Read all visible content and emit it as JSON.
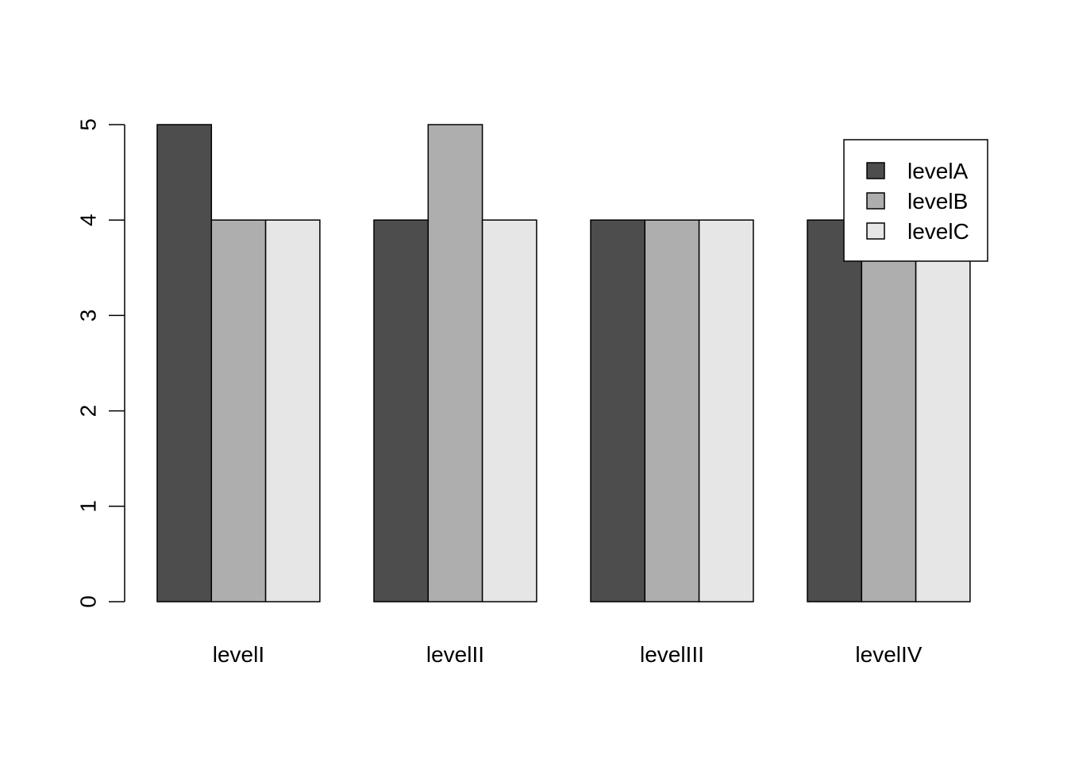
{
  "chart_data": {
    "type": "bar",
    "mode": "grouped",
    "categories": [
      "levelI",
      "levelII",
      "levelIII",
      "levelIV"
    ],
    "series": [
      {
        "name": "levelA",
        "color": "#4D4D4D",
        "values": [
          5,
          4,
          4,
          4
        ]
      },
      {
        "name": "levelB",
        "color": "#AEAEAE",
        "values": [
          4,
          5,
          4,
          4
        ]
      },
      {
        "name": "levelC",
        "color": "#E6E6E6",
        "values": [
          4,
          4,
          4,
          4
        ]
      }
    ],
    "title": "",
    "xlabel": "",
    "ylabel": "",
    "ylim": [
      0,
      5
    ],
    "yticks": [
      0,
      1,
      2,
      3,
      4,
      5
    ],
    "grid": false,
    "legend_position": "top-right",
    "background": "#FFFFFF"
  }
}
